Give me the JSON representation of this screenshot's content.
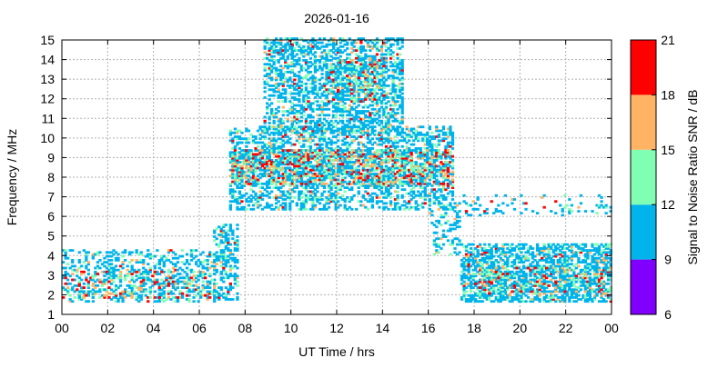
{
  "chart_data": {
    "type": "heatmap",
    "title": "2026-01-16",
    "xlabel": "UT Time / hrs",
    "ylabel": "Frequency / MHz",
    "xlim": [
      0,
      24
    ],
    "ylim": [
      1,
      15
    ],
    "x_ticks": [
      "00",
      "02",
      "04",
      "06",
      "08",
      "10",
      "12",
      "14",
      "16",
      "18",
      "20",
      "22",
      "00"
    ],
    "x_tick_values": [
      0,
      2,
      4,
      6,
      8,
      10,
      12,
      14,
      16,
      18,
      20,
      22,
      24
    ],
    "y_ticks": [
      "1",
      "2",
      "3",
      "4",
      "5",
      "6",
      "7",
      "8",
      "9",
      "10",
      "11",
      "12",
      "13",
      "14",
      "15"
    ],
    "y_tick_values": [
      1,
      2,
      3,
      4,
      5,
      6,
      7,
      8,
      9,
      10,
      11,
      12,
      13,
      14,
      15
    ],
    "grid": true,
    "colorbar": {
      "label": "Signal to Noise Ratio SNR / dB",
      "ticks": [
        "6",
        "9",
        "12",
        "15",
        "18",
        "21"
      ],
      "tick_values": [
        6,
        9,
        12,
        15,
        18,
        21
      ],
      "bands": [
        {
          "min": 6,
          "max": 9,
          "color": "#8000ff"
        },
        {
          "min": 9,
          "max": 12,
          "color": "#00b4eb"
        },
        {
          "min": 12,
          "max": 15,
          "color": "#80ffb4"
        },
        {
          "min": 15,
          "max": 18,
          "color": "#ffb464"
        },
        {
          "min": 18,
          "max": 21,
          "color": "#ff0000"
        }
      ]
    },
    "regions": [
      {
        "t": [
          0,
          6.6
        ],
        "f": [
          1.6,
          4.3
        ],
        "density": 0.3
      },
      {
        "t": [
          0,
          6.6
        ],
        "f": [
          1.8,
          3.2
        ],
        "density": 0.22,
        "hot": true
      },
      {
        "t": [
          6.6,
          7.6
        ],
        "f": [
          1.7,
          5.5
        ],
        "density": 0.4
      },
      {
        "t": [
          7.3,
          17.0
        ],
        "f": [
          6.3,
          10.5
        ],
        "density": 0.38
      },
      {
        "t": [
          7.4,
          17.0
        ],
        "f": [
          7.6,
          9.3
        ],
        "density": 0.55,
        "hot": true
      },
      {
        "t": [
          8.8,
          14.8
        ],
        "f": [
          10.2,
          15.0
        ],
        "density": 0.45
      },
      {
        "t": [
          11.5,
          14.0
        ],
        "f": [
          11.8,
          14.0
        ],
        "density": 0.35,
        "hot": true
      },
      {
        "t": [
          16.0,
          17.4
        ],
        "f": [
          4.0,
          6.6
        ],
        "density": 0.25
      },
      {
        "t": [
          17.4,
          24.0
        ],
        "f": [
          1.6,
          4.6
        ],
        "density": 0.55
      },
      {
        "t": [
          18.0,
          24.0
        ],
        "f": [
          2.0,
          3.4
        ],
        "density": 0.3,
        "hot": true
      },
      {
        "t": [
          17.4,
          24.0
        ],
        "f": [
          6.0,
          7.0
        ],
        "density": 0.1
      }
    ]
  }
}
